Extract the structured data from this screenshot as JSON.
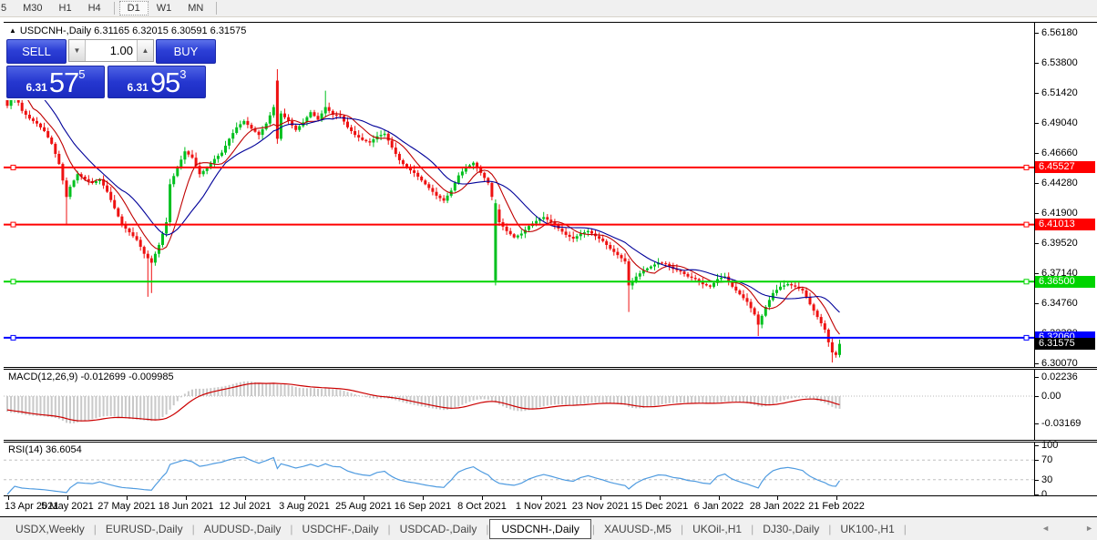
{
  "toolbar": {
    "timeframes": [
      "5",
      "M30",
      "H1",
      "H4",
      "D1",
      "W1",
      "MN"
    ],
    "active_timeframe": "D1"
  },
  "chart": {
    "collapse_marker": "▲",
    "symbol_title": "USDCNH-,Daily",
    "ohlc": {
      "open": "6.31165",
      "high": "6.32015",
      "low": "6.30591",
      "close": "6.31575"
    },
    "trade_panel": {
      "sell_label": "SELL",
      "buy_label": "BUY",
      "volume": "1.00",
      "spinner_down_icon": "▼",
      "spinner_up_icon": "▲",
      "sell_price": {
        "small": "6.31",
        "big": "57",
        "sup": "5"
      },
      "buy_price": {
        "small": "6.31",
        "big": "95",
        "sup": "3"
      }
    }
  },
  "chart_data": {
    "type": "candlestick",
    "symbol": "USDCNH",
    "timeframe": "Daily",
    "num_candles": 226,
    "price_axis_ticks": [
      "6.56180",
      "6.53800",
      "6.51420",
      "6.49040",
      "6.46660",
      "6.44280",
      "6.41900",
      "6.39520",
      "6.37140",
      "6.34760",
      "6.32380",
      "6.30070"
    ],
    "price_range": {
      "top": 6.5697,
      "bottom": 6.2975
    },
    "hlines": [
      {
        "price": 6.45527,
        "label": "6.45527",
        "color": "#ff0000"
      },
      {
        "price": 6.41013,
        "label": "6.41013",
        "color": "#ff0000"
      },
      {
        "price": 6.365,
        "label": "6.36500",
        "color": "#00d400"
      },
      {
        "price": 6.3206,
        "label": "6.32060",
        "color": "#0000ff"
      }
    ],
    "current_price": {
      "value": 6.31575,
      "label": "6.31575",
      "bg": "#000000"
    },
    "colors": {
      "up": "#00c01e",
      "down": "#ee1111",
      "ma_fast": "#c00000",
      "ma_slow": "#000099",
      "macd_bar": "#c9c9c9",
      "macd_signal": "#cc0000",
      "rsi_line": "#4f9be0",
      "level_dash": "#c0c0c0"
    },
    "close_keyframes": [
      [
        0,
        6.504
      ],
      [
        2,
        6.513
      ],
      [
        4,
        6.5
      ],
      [
        6,
        6.494
      ],
      [
        8,
        6.49
      ],
      [
        10,
        6.484
      ],
      [
        12,
        6.474
      ],
      [
        14,
        6.458
      ],
      [
        16,
        6.432
      ],
      [
        17,
        6.44
      ],
      [
        19,
        6.45
      ],
      [
        21,
        6.446
      ],
      [
        23,
        6.443
      ],
      [
        25,
        6.446
      ],
      [
        27,
        6.436
      ],
      [
        29,
        6.423
      ],
      [
        31,
        6.41
      ],
      [
        33,
        6.404
      ],
      [
        35,
        6.398
      ],
      [
        37,
        6.387
      ],
      [
        39,
        6.38
      ],
      [
        41,
        6.394
      ],
      [
        43,
        6.412
      ],
      [
        44,
        6.442
      ],
      [
        46,
        6.455
      ],
      [
        48,
        6.468
      ],
      [
        50,
        6.463
      ],
      [
        52,
        6.45
      ],
      [
        54,
        6.455
      ],
      [
        56,
        6.462
      ],
      [
        58,
        6.467
      ],
      [
        60,
        6.478
      ],
      [
        62,
        6.487
      ],
      [
        64,
        6.492
      ],
      [
        66,
        6.486
      ],
      [
        68,
        6.481
      ],
      [
        70,
        6.49
      ],
      [
        72,
        6.503
      ],
      [
        73,
        6.478
      ],
      [
        74,
        6.498
      ],
      [
        76,
        6.492
      ],
      [
        78,
        6.485
      ],
      [
        80,
        6.491
      ],
      [
        82,
        6.499
      ],
      [
        84,
        6.493
      ],
      [
        86,
        6.503
      ],
      [
        88,
        6.497
      ],
      [
        90,
        6.496
      ],
      [
        92,
        6.487
      ],
      [
        94,
        6.481
      ],
      [
        96,
        6.477
      ],
      [
        98,
        6.475
      ],
      [
        100,
        6.48
      ],
      [
        102,
        6.482
      ],
      [
        104,
        6.471
      ],
      [
        106,
        6.461
      ],
      [
        108,
        6.455
      ],
      [
        110,
        6.451
      ],
      [
        112,
        6.445
      ],
      [
        114,
        6.439
      ],
      [
        116,
        6.433
      ],
      [
        118,
        6.429
      ],
      [
        120,
        6.437
      ],
      [
        122,
        6.449
      ],
      [
        124,
        6.455
      ],
      [
        126,
        6.459
      ],
      [
        128,
        6.451
      ],
      [
        130,
        6.443
      ],
      [
        131,
        6.432
      ],
      [
        133,
        6.412
      ],
      [
        135,
        6.405
      ],
      [
        137,
        6.4
      ],
      [
        139,
        6.403
      ],
      [
        141,
        6.409
      ],
      [
        143,
        6.413
      ],
      [
        145,
        6.416
      ],
      [
        147,
        6.412
      ],
      [
        149,
        6.407
      ],
      [
        151,
        6.402
      ],
      [
        153,
        6.399
      ],
      [
        155,
        6.403
      ],
      [
        157,
        6.405
      ],
      [
        159,
        6.401
      ],
      [
        161,
        6.397
      ],
      [
        163,
        6.391
      ],
      [
        165,
        6.386
      ],
      [
        167,
        6.381
      ],
      [
        168,
        6.362
      ],
      [
        170,
        6.369
      ],
      [
        172,
        6.374
      ],
      [
        174,
        6.377
      ],
      [
        176,
        6.38
      ],
      [
        178,
        6.379
      ],
      [
        180,
        6.375
      ],
      [
        182,
        6.373
      ],
      [
        184,
        6.369
      ],
      [
        186,
        6.367
      ],
      [
        188,
        6.363
      ],
      [
        190,
        6.361
      ],
      [
        192,
        6.367
      ],
      [
        194,
        6.369
      ],
      [
        196,
        6.361
      ],
      [
        198,
        6.355
      ],
      [
        200,
        6.349
      ],
      [
        202,
        6.339
      ],
      [
        203,
        6.331
      ],
      [
        205,
        6.345
      ],
      [
        207,
        6.356
      ],
      [
        209,
        6.361
      ],
      [
        211,
        6.363
      ],
      [
        213,
        6.361
      ],
      [
        215,
        6.358
      ],
      [
        217,
        6.347
      ],
      [
        219,
        6.337
      ],
      [
        221,
        6.327
      ],
      [
        222,
        6.317
      ],
      [
        223,
        6.309
      ],
      [
        224,
        6.307
      ],
      [
        225,
        6.3158
      ]
    ],
    "candle_overrides": [
      {
        "i": 73,
        "o": 6.524,
        "c": 6.478,
        "h": 6.533,
        "l": 6.474
      },
      {
        "i": 132,
        "o": 6.366,
        "c": 6.427,
        "h": 6.43,
        "l": 6.362
      }
    ],
    "wick_overrides": [
      {
        "i": 16,
        "l": 6.41
      },
      {
        "i": 38,
        "l": 6.353
      },
      {
        "i": 39,
        "l": 6.356
      },
      {
        "i": 86,
        "h": 6.516
      },
      {
        "i": 168,
        "l": 6.341
      },
      {
        "i": 203,
        "l": 6.322
      },
      {
        "i": 223,
        "l": 6.301
      }
    ],
    "seed": 42,
    "dates": [
      "13 Apr 2021",
      "5 May 2021",
      "27 May 2021",
      "18 Jun 2021",
      "12 Jul 2021",
      "3 Aug 2021",
      "25 Aug 2021",
      "16 Sep 2021",
      "8 Oct 2021",
      "1 Nov 2021",
      "23 Nov 2021",
      "15 Dec 2021",
      "6 Jan 2022",
      "28 Jan 2022",
      "21 Feb 2022"
    ],
    "date_indices": [
      0,
      16,
      32,
      48,
      64,
      80,
      96,
      112,
      128,
      144,
      160,
      176,
      192,
      208,
      224
    ],
    "macd": {
      "label": "MACD(12,26,9)",
      "values_text": "-0.012699 -0.009985",
      "axis_ticks": [
        "0.02236",
        "0.00",
        "-0.03169"
      ],
      "params": {
        "fast": 12,
        "slow": 26,
        "signal": 9
      }
    },
    "rsi": {
      "label": "RSI(14)",
      "value_text": "36.6054",
      "axis_ticks": [
        "100",
        "70",
        "30",
        "0"
      ],
      "levels": [
        70,
        30
      ],
      "period": 14
    },
    "ma_periods": {
      "fast": 8,
      "slow": 16
    }
  },
  "tabbar": {
    "tabs": [
      "USDX,Weekly",
      "EURUSD-,Daily",
      "AUDUSD-,Daily",
      "USDCHF-,Daily",
      "USDCAD-,Daily",
      "USDCNH-,Daily",
      "XAUUSD-,M5",
      "UKOil-,H1",
      "DJ30-,Daily",
      "UK100-,H1"
    ],
    "active_tab": "USDCNH-,Daily",
    "scroll_left_icon": "◄",
    "scroll_right_icon": "►"
  }
}
